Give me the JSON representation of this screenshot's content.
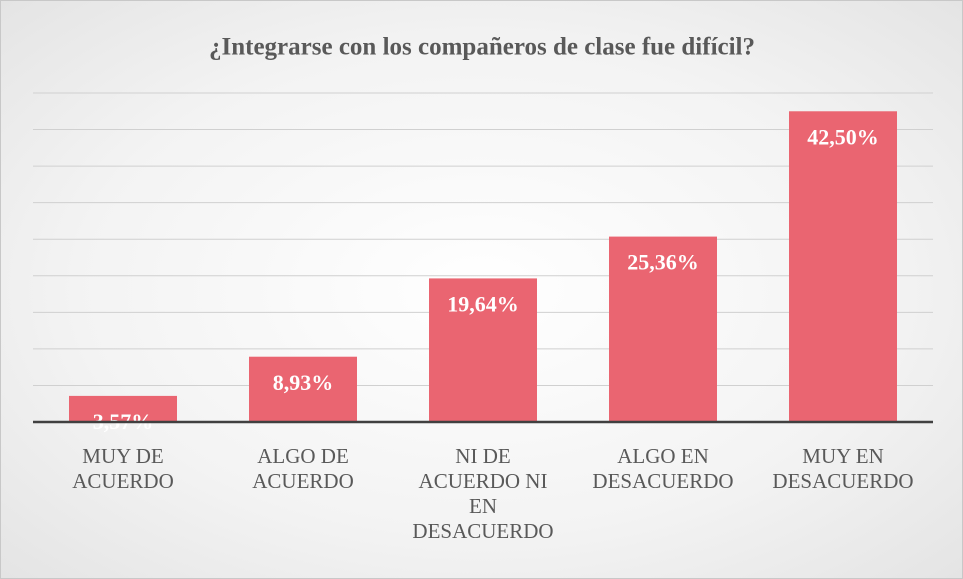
{
  "chart_data": {
    "type": "bar",
    "title": "¿Integrarse con los compañeros de clase fue difícil?",
    "categories": [
      "MUY DE ACUERDO",
      "ALGO DE ACUERDO",
      "NI DE ACUERDO NI EN DESACUERDO",
      "ALGO EN DESACUERDO",
      "MUY EN DESACUERDO"
    ],
    "values": [
      3.57,
      8.93,
      19.64,
      25.36,
      42.5
    ],
    "value_labels": [
      "3,57%",
      "8,93%",
      "19,64%",
      "25,36%",
      "42,50%"
    ],
    "color": "#ea6571",
    "ylim": [
      0,
      45
    ],
    "yticks": [
      0,
      5,
      10,
      15,
      20,
      25,
      30,
      35,
      40,
      45
    ],
    "grid": true
  }
}
